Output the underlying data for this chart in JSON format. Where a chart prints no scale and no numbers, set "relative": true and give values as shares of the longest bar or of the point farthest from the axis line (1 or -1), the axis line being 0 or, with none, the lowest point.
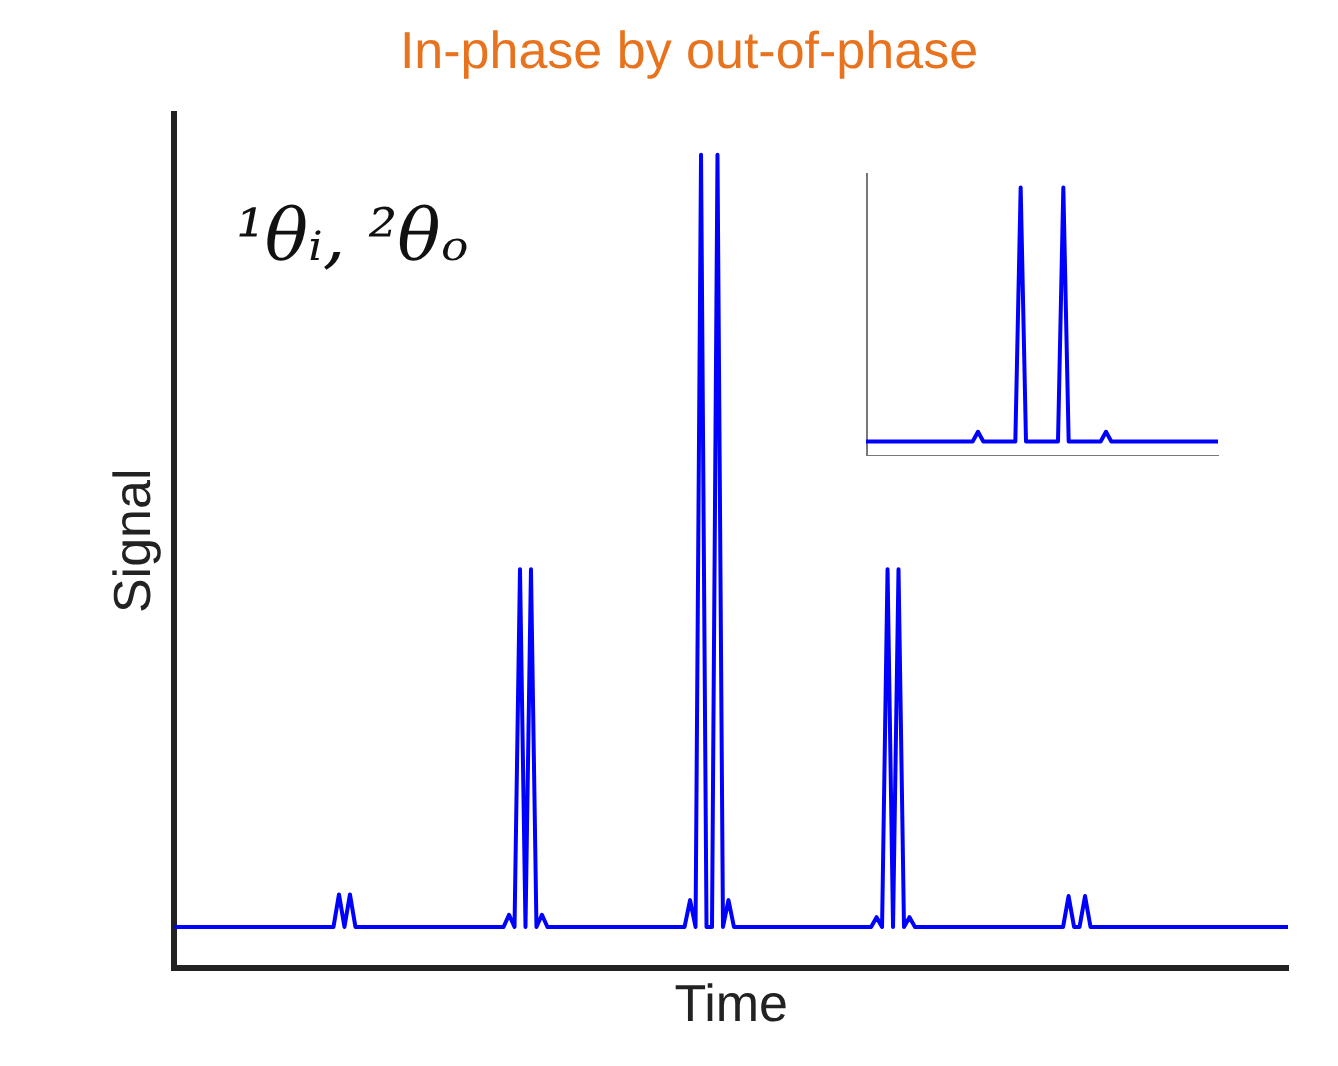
{
  "chart_data": [
    {
      "type": "line",
      "title": "In-phase by out-of-phase",
      "xlabel": "Time",
      "ylabel": "Signal",
      "relative": true,
      "tick_labels": false,
      "marker": "none",
      "annotations": [
        "¹θᵢ, ²θₒ"
      ],
      "categories": [
        null,
        null,
        null,
        null,
        null,
        null,
        null,
        null,
        null,
        null,
        null,
        null,
        null,
        null,
        null,
        null,
        null,
        null,
        null,
        null,
        null,
        null,
        null,
        null,
        null,
        null,
        null,
        null,
        null,
        null,
        null,
        null,
        null,
        null,
        null,
        null,
        null,
        null,
        null,
        null,
        null,
        null,
        null,
        null,
        null,
        null,
        null,
        null,
        null,
        null,
        null,
        null,
        null,
        null,
        null,
        null,
        null,
        null,
        null,
        null,
        null,
        null,
        null,
        null,
        null,
        null,
        null,
        null,
        null,
        null,
        null,
        null,
        null,
        null,
        null,
        null,
        null,
        null,
        null,
        null,
        null,
        null,
        null,
        null,
        null,
        null,
        null,
        null,
        null,
        null,
        null,
        null,
        null,
        null,
        null,
        null,
        null,
        null,
        null,
        null,
        null,
        null,
        null,
        null,
        null,
        null,
        null,
        null,
        null,
        null,
        null,
        null,
        null,
        null,
        null,
        null,
        null,
        null,
        null,
        null,
        null,
        null,
        null,
        null,
        null,
        null,
        null,
        null,
        null,
        null,
        null,
        null,
        null,
        null,
        null,
        null,
        null,
        null,
        null,
        null,
        null,
        null,
        null,
        null,
        null,
        null,
        null,
        null,
        null,
        null,
        null,
        null,
        null,
        null,
        null,
        null,
        null,
        null,
        null,
        null,
        null,
        null,
        null,
        null,
        null,
        null,
        null,
        null,
        null,
        null,
        null,
        null,
        null,
        null,
        null,
        null,
        null,
        null,
        null,
        null,
        null,
        null,
        null,
        null,
        null,
        null,
        null,
        null,
        null,
        null,
        null,
        null,
        null,
        null,
        null,
        null,
        null,
        null,
        null,
        null,
        null,
        null,
        null,
        null
      ],
      "series": [
        {
          "color": "#0000ff",
          "values": [
            0.05,
            0.05,
            0.05,
            0.05,
            0.05,
            0.05,
            0.05,
            0.05,
            0.05,
            0.05,
            0.05,
            0.05,
            0.05,
            0.05,
            0.05,
            0.05,
            0.05,
            0.05,
            0.05,
            0.05,
            0.05,
            0.05,
            0.05,
            0.05,
            0.05,
            0.05,
            0.05,
            0.05,
            0.05,
            0.05,
            0.09,
            0.05,
            0.09,
            0.05,
            0.05,
            0.05,
            0.05,
            0.05,
            0.05,
            0.05,
            0.05,
            0.05,
            0.05,
            0.05,
            0.05,
            0.05,
            0.05,
            0.05,
            0.05,
            0.05,
            0.05,
            0.05,
            0.05,
            0.05,
            0.05,
            0.05,
            0.05,
            0.05,
            0.05,
            0.05,
            0.05,
            0.065,
            0.05,
            0.49,
            0.05,
            0.49,
            0.05,
            0.065,
            0.05,
            0.05,
            0.05,
            0.05,
            0.05,
            0.05,
            0.05,
            0.05,
            0.05,
            0.05,
            0.05,
            0.05,
            0.05,
            0.05,
            0.05,
            0.05,
            0.05,
            0.05,
            0.05,
            0.05,
            0.05,
            0.05,
            0.05,
            0.05,
            0.05,
            0.05,
            0.083,
            0.05,
            1,
            0.05,
            0.05,
            1,
            0.05,
            0.083,
            0.05,
            0.05,
            0.05,
            0.05,
            0.05,
            0.05,
            0.05,
            0.05,
            0.05,
            0.05,
            0.05,
            0.05,
            0.05,
            0.05,
            0.05,
            0.05,
            0.05,
            0.05,
            0.05,
            0.05,
            0.05,
            0.05,
            0.05,
            0.05,
            0.05,
            0.05,
            0.062,
            0.05,
            0.49,
            0.05,
            0.49,
            0.05,
            0.062,
            0.05,
            0.05,
            0.05,
            0.05,
            0.05,
            0.05,
            0.05,
            0.05,
            0.05,
            0.05,
            0.05,
            0.05,
            0.05,
            0.05,
            0.05,
            0.05,
            0.05,
            0.05,
            0.05,
            0.05,
            0.05,
            0.05,
            0.05,
            0.05,
            0.05,
            0.05,
            0.05,
            0.05,
            0.088,
            0.05,
            0.05,
            0.088,
            0.05,
            0.05,
            0.05,
            0.05,
            0.05,
            0.05,
            0.05,
            0.05,
            0.05,
            0.05,
            0.05,
            0.05,
            0.05,
            0.05,
            0.05,
            0.05,
            0.05,
            0.05,
            0.05,
            0.05,
            0.05,
            0.05,
            0.05,
            0.05,
            0.05,
            0.05,
            0.05,
            0.05,
            0.05,
            0.05,
            0.05,
            0.05,
            0.05,
            0.05,
            0.05,
            0.05,
            0.05
          ]
        }
      ]
    },
    {
      "type": "line",
      "relative": true,
      "tick_labels": false,
      "marker": "none",
      "categories": [
        null,
        null,
        null,
        null,
        null,
        null,
        null,
        null,
        null,
        null,
        null,
        null,
        null,
        null,
        null,
        null,
        null,
        null,
        null,
        null,
        null,
        null,
        null,
        null,
        null,
        null,
        null,
        null,
        null,
        null,
        null,
        null,
        null,
        null,
        null,
        null,
        null,
        null,
        null,
        null,
        null,
        null,
        null,
        null,
        null,
        null,
        null,
        null,
        null,
        null,
        null,
        null,
        null,
        null,
        null,
        null,
        null,
        null,
        null,
        null,
        null,
        null,
        null,
        null,
        null,
        null,
        null
      ],
      "series": [
        {
          "color": "#0000ff",
          "values": [
            0.054,
            0.054,
            0.054,
            0.054,
            0.054,
            0.054,
            0.054,
            0.054,
            0.054,
            0.054,
            0.054,
            0.054,
            0.054,
            0.054,
            0.054,
            0.054,
            0.054,
            0.054,
            0.054,
            0.054,
            0.054,
            0.09,
            0.054,
            0.054,
            0.054,
            0.054,
            0.054,
            0.054,
            0.054,
            1,
            0.054,
            0.054,
            0.054,
            0.054,
            0.054,
            0.054,
            0.054,
            1,
            0.054,
            0.054,
            0.054,
            0.054,
            0.054,
            0.054,
            0.054,
            0.09,
            0.054,
            0.054,
            0.054,
            0.054,
            0.054,
            0.054,
            0.054,
            0.054,
            0.054,
            0.054,
            0.054,
            0.054,
            0.054,
            0.054,
            0.054,
            0.054,
            0.054,
            0.054,
            0.054,
            0.054,
            0.054
          ]
        }
      ]
    }
  ]
}
